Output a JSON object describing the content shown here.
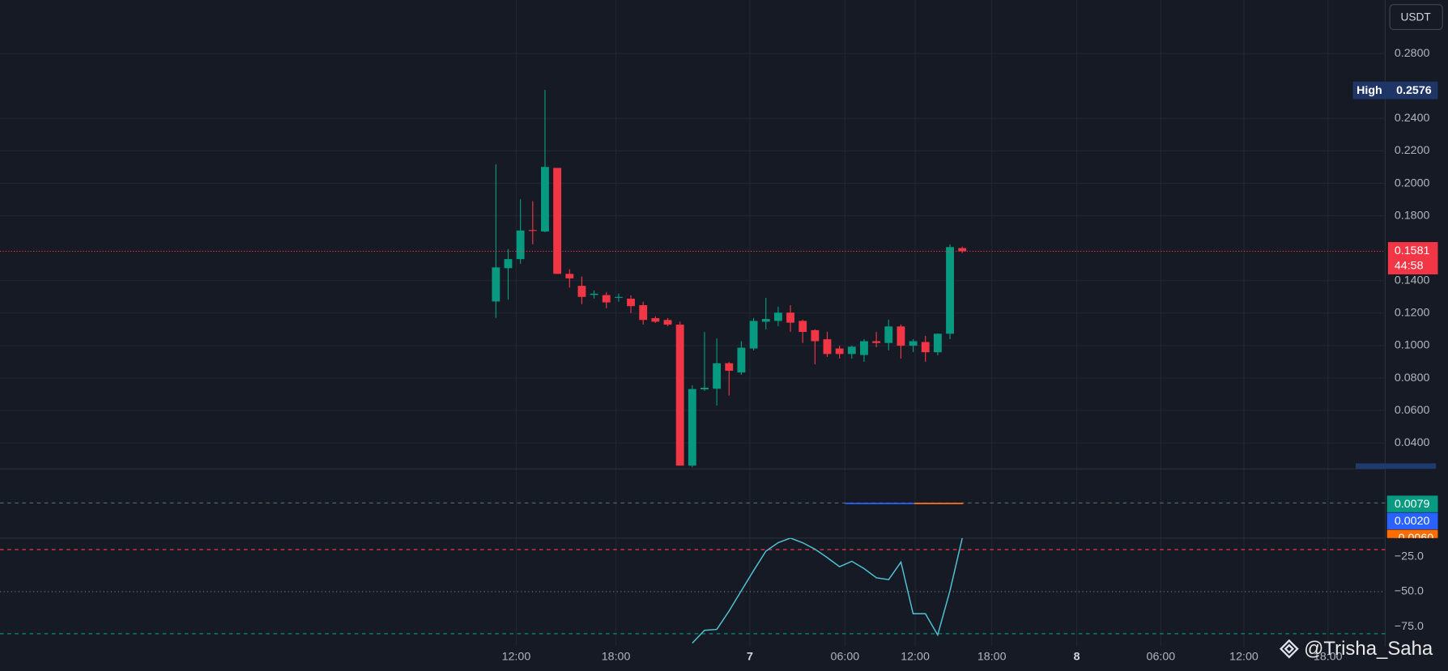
{
  "chart_data": [
    {
      "type": "candlestick",
      "currency": "USDT",
      "up_color": "#089981",
      "down_color": "#f23645",
      "open": [
        0.1272,
        0.1477,
        0.1533,
        0.1712,
        0.1703,
        0.2095,
        0.1442,
        0.1368,
        0.1312,
        0.1311,
        0.1296,
        0.1289,
        0.1249,
        0.1169,
        0.1158,
        0.1129,
        0.026,
        0.073,
        0.0734,
        0.0891,
        0.0834,
        0.0982,
        0.1147,
        0.1152,
        0.1203,
        0.1152,
        0.1095,
        0.1039,
        0.0982,
        0.0948,
        0.0942,
        0.1027,
        0.1016,
        0.1118,
        0.0999,
        0.1022,
        0.0959,
        0.1073,
        0.1601
      ],
      "high": [
        0.2118,
        0.1595,
        0.1902,
        0.189,
        0.2576,
        0.2095,
        0.147,
        0.1425,
        0.134,
        0.133,
        0.132,
        0.131,
        0.127,
        0.118,
        0.117,
        0.1147,
        0.0755,
        0.1084,
        0.1044,
        0.09,
        0.1027,
        0.117,
        0.1294,
        0.124,
        0.1249,
        0.116,
        0.11,
        0.1085,
        0.1,
        0.1,
        0.104,
        0.1084,
        0.116,
        0.113,
        0.104,
        0.106,
        0.1075,
        0.1624,
        0.161
      ],
      "low": [
        0.117,
        0.1283,
        0.1504,
        0.1624,
        0.1698,
        0.1442,
        0.1357,
        0.1255,
        0.129,
        0.123,
        0.127,
        0.12,
        0.113,
        0.114,
        0.112,
        0.026,
        0.025,
        0.072,
        0.063,
        0.0692,
        0.082,
        0.097,
        0.11,
        0.112,
        0.1084,
        0.1016,
        0.0885,
        0.093,
        0.092,
        0.092,
        0.09,
        0.099,
        0.097,
        0.092,
        0.096,
        0.09,
        0.094,
        0.104,
        0.157
      ],
      "close": [
        0.1482,
        0.1533,
        0.1709,
        0.1708,
        0.2101,
        0.1442,
        0.1414,
        0.13,
        0.132,
        0.1266,
        0.13,
        0.1243,
        0.1158,
        0.1147,
        0.1129,
        0.026,
        0.0732,
        0.074,
        0.0891,
        0.0845,
        0.0987,
        0.1152,
        0.1164,
        0.1203,
        0.1141,
        0.1084,
        0.1027,
        0.0948,
        0.0948,
        0.0993,
        0.1027,
        0.1016,
        0.1118,
        0.0999,
        0.1027,
        0.0959,
        0.1073,
        0.1607,
        0.1581
      ],
      "ylim": [
        0.024,
        0.313
      ],
      "yticks": [
        {
          "value": 0.28,
          "label": "0.2800"
        },
        {
          "value": 0.24,
          "label": "0.2400"
        },
        {
          "value": 0.22,
          "label": "0.2200"
        },
        {
          "value": 0.2,
          "label": "0.2000"
        },
        {
          "value": 0.18,
          "label": "0.1800"
        },
        {
          "value": 0.14,
          "label": "0.1400"
        },
        {
          "value": 0.12,
          "label": "0.1200"
        },
        {
          "value": 0.1,
          "label": "0.1000"
        },
        {
          "value": 0.08,
          "label": "0.0800"
        },
        {
          "value": 0.06,
          "label": "0.0600"
        },
        {
          "value": 0.04,
          "label": "0.0400"
        }
      ],
      "high_marker": {
        "label": "High",
        "value": 0.2576
      },
      "last_price": {
        "value": 0.1581,
        "countdown": "44:58"
      },
      "x_labels": [
        "12:00",
        "18:00",
        "7",
        "06:00",
        "12:00",
        "18:00",
        "8",
        "06:00",
        "12:00",
        "18:00"
      ]
    },
    {
      "type": "macd",
      "value_labels": [
        {
          "label": "0.0079",
          "value": 0.0079,
          "color": "#089981"
        },
        {
          "label": "0.0020",
          "value": 0.002,
          "color": "#2962ff"
        },
        {
          "label": "-0.0060",
          "value": -0.006,
          "color": "#ff6d00"
        }
      ]
    },
    {
      "type": "line",
      "series": [
        {
          "color": "#4fc3d3",
          "values": [
            null,
            null,
            null,
            null,
            null,
            null,
            null,
            null,
            null,
            null,
            null,
            null,
            null,
            null,
            null,
            null,
            -86.8,
            -77.6,
            -76.9,
            -63.8,
            -49.3,
            -35,
            -21.1,
            -15,
            -11.8,
            -15.1,
            -19.7,
            -25.7,
            -32.2,
            -28.3,
            -33.6,
            -40.1,
            -41.4,
            -28.9,
            -65.8,
            -65.8,
            -80.9,
            -49.3,
            -11.8
          ]
        }
      ],
      "ylim": [
        -98.7,
        -11.8
      ],
      "yticks": [
        {
          "value": -25,
          "label": "−25.0"
        },
        {
          "value": -50,
          "label": "−50.0"
        },
        {
          "value": -75,
          "label": "−75.0"
        }
      ],
      "levels": [
        {
          "value": -20,
          "color": "#f23645"
        },
        {
          "value": -50,
          "color": "#787b86"
        },
        {
          "value": -80,
          "color": "#089981"
        }
      ]
    }
  ],
  "watermark": "@Trisha_Saha"
}
